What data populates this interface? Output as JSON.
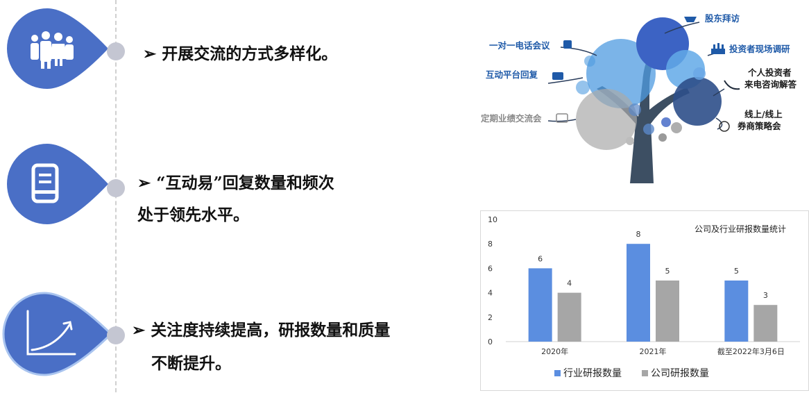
{
  "bullets": [
    {
      "text": "➢ 开展交流的方式多样化。"
    },
    {
      "line1": "➢ “互动易”回复数量和频次",
      "line2": "处于领先水平。"
    },
    {
      "line1": "➢ 关注度持续提高，研报数量和质量",
      "line2": "不断提升。"
    }
  ],
  "icons": [
    "people-group-icon",
    "document-printer-icon",
    "growth-curve-icon"
  ],
  "tree": {
    "labels": {
      "shareholder_visit": "股东拜访",
      "phone_meeting": "一对一电话会议",
      "site_research": "投资者现场调研",
      "platform_reply": "互动平台回复",
      "individual_calls_1": "个人投资者",
      "individual_calls_2": "来电咨询解答",
      "regular_exchange": "定期业绩交流会",
      "strategy_1": "线上/线上",
      "strategy_2": "券商策略会"
    }
  },
  "colors": {
    "drop_blue": "#4a6fc6",
    "bar_blue": "#5b8ee0",
    "bar_gray": "#a6a6a6",
    "tree_trunk": "#3d4f63"
  },
  "chart_data": {
    "type": "bar",
    "title": "公司及行业研报数量统计",
    "categories": [
      "2020年",
      "2021年",
      "截至2022年3月6日"
    ],
    "series": [
      {
        "name": "行业研报数量",
        "values": [
          6,
          8,
          5
        ],
        "color": "#5b8ee0"
      },
      {
        "name": "公司研报数量",
        "values": [
          4,
          5,
          3
        ],
        "color": "#a6a6a6"
      }
    ],
    "yticks": [
      "0",
      "2",
      "4",
      "6",
      "8",
      "10"
    ],
    "ylim": [
      0,
      10
    ],
    "legend": "bottom"
  }
}
